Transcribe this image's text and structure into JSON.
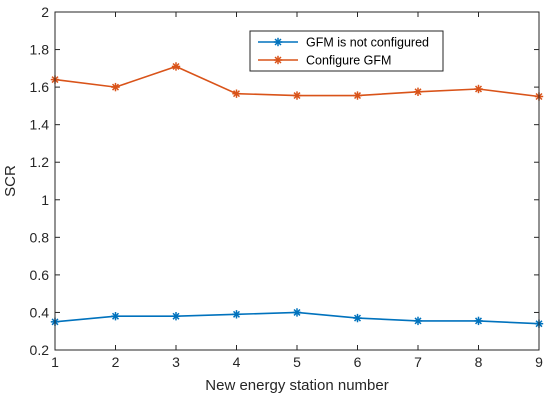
{
  "chart_data": {
    "type": "line",
    "title": "",
    "xlabel": "New energy station number",
    "ylabel": "SCR",
    "x": [
      1,
      2,
      3,
      4,
      5,
      6,
      7,
      8,
      9
    ],
    "xlim": [
      1,
      9
    ],
    "ylim": [
      0.2,
      2
    ],
    "xticks": [
      "1",
      "2",
      "3",
      "4",
      "5",
      "6",
      "7",
      "8",
      "9"
    ],
    "yticks": [
      "0.2",
      "0.4",
      "0.6",
      "0.8",
      "1",
      "1.2",
      "1.4",
      "1.6",
      "1.8",
      "2"
    ],
    "grid": false,
    "legend_position": "top-right",
    "marker": "asterisk",
    "series": [
      {
        "name": "GFM is not configured",
        "color": "#0072BD",
        "values": [
          0.35,
          0.38,
          0.38,
          0.39,
          0.4,
          0.37,
          0.355,
          0.355,
          0.34
        ]
      },
      {
        "name": "Configure GFM",
        "color": "#D95319",
        "values": [
          1.64,
          1.6,
          1.71,
          1.565,
          1.555,
          1.555,
          1.575,
          1.59,
          1.55
        ]
      }
    ]
  }
}
